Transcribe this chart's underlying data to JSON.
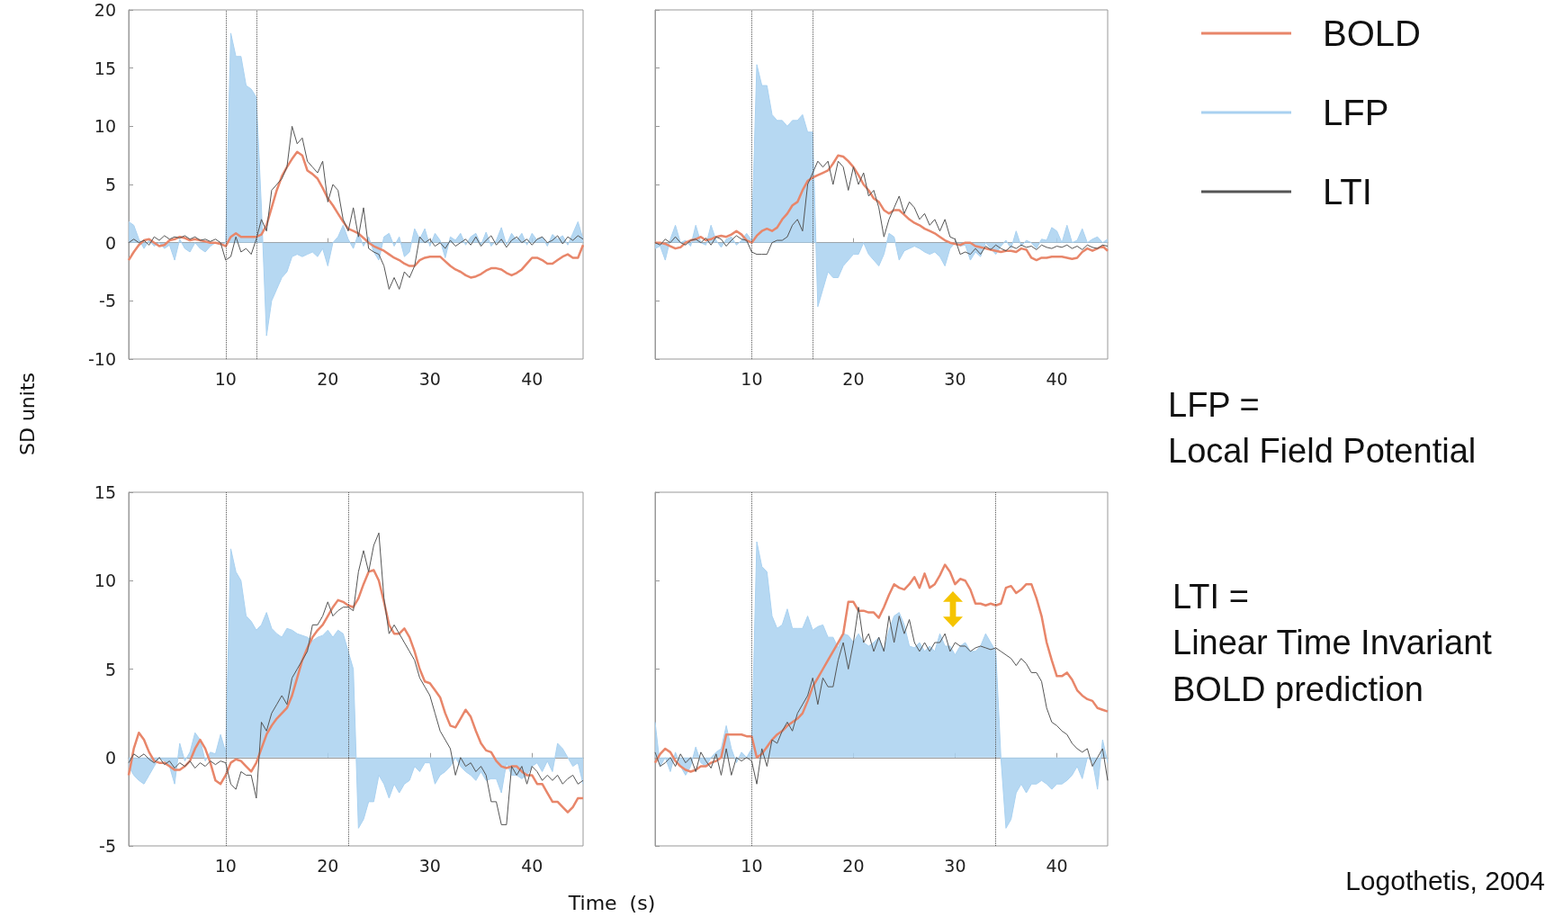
{
  "chart_data": [
    {
      "type": "line",
      "ylabel": "SD units",
      "xlim": [
        0.5,
        45
      ],
      "xticks": [
        10,
        20,
        30,
        40
      ],
      "ylim": [
        -10,
        20
      ],
      "yticks": [
        -10,
        -5,
        0,
        5,
        10,
        15,
        20
      ],
      "marker": "none",
      "legend": false,
      "grid": false,
      "x": [
        0.5,
        1,
        1.5,
        2,
        2.5,
        3,
        3.5,
        4,
        4.5,
        5,
        5.5,
        6,
        6.5,
        7,
        7.5,
        8,
        8.5,
        9,
        9.5,
        10,
        10.5,
        11,
        11.5,
        12,
        12.5,
        13,
        13.5,
        14,
        14.5,
        15,
        15.5,
        16,
        16.5,
        17,
        17.5,
        18,
        18.5,
        19,
        19.5,
        20,
        20.5,
        21,
        21.5,
        22,
        22.5,
        23,
        23.5,
        24,
        24.5,
        25,
        25.5,
        26,
        26.5,
        27,
        27.5,
        28,
        28.5,
        29,
        29.5,
        30,
        30.5,
        31,
        31.5,
        32,
        32.5,
        33,
        33.5,
        34,
        34.5,
        35,
        35.5,
        36,
        36.5,
        37,
        37.5,
        38,
        38.5,
        39,
        39.5,
        40,
        40.5,
        41,
        41.5,
        42,
        42.5,
        43,
        43.5,
        44,
        44.5,
        45
      ],
      "ref_lines": [
        {
          "axis": "x",
          "value": 10,
          "color": "#555555",
          "line_style": "dotted"
        },
        {
          "axis": "x",
          "value": 13,
          "color": "#555555",
          "line_style": "dotted"
        }
      ],
      "series": [
        {
          "type": "line",
          "color": "#e8866a",
          "values": [
            -1.5,
            -0.8,
            -0.2,
            0.2,
            0.3,
            0,
            -0.3,
            -0.2,
            0.2,
            0.3,
            0.5,
            0.4,
            0.2,
            0.3,
            0.2,
            0.1,
            0,
            0,
            -0.1,
            -0.3,
            0.5,
            0.8,
            0.5,
            0.5,
            0.5,
            0.5,
            0.7,
            1.5,
            3,
            4.5,
            5.7,
            6.5,
            7.2,
            7.8,
            7.5,
            6.2,
            5.9,
            5.5,
            4.7,
            3.8,
            3.2,
            2.5,
            1.8,
            1.2,
            1,
            0.8,
            0.4,
            0,
            -0.3,
            -0.5,
            -0.7,
            -1,
            -1.3,
            -1.5,
            -1.8,
            -2,
            -2,
            -1.5,
            -1.3,
            -1.2,
            -1.2,
            -1.2,
            -1.6,
            -2,
            -2.3,
            -2.5,
            -2.8,
            -3,
            -2.9,
            -2.7,
            -2.4,
            -2.2,
            -2.2,
            -2.3,
            -2.6,
            -2.8,
            -2.6,
            -2.3,
            -1.8,
            -1.3,
            -1.3,
            -1.5,
            -1.8,
            -1.8,
            -1.5,
            -1.2,
            -1,
            -1.3,
            -1.3,
            -0.2
          ]
        },
        {
          "type": "area",
          "color": "#a9d1f0",
          "values": [
            1.8,
            1.5,
            0.3,
            -0.5,
            0.2,
            -0.3,
            0,
            -0.5,
            -0.2,
            -1.5,
            0.3,
            -0.5,
            -0.8,
            0,
            -0.5,
            -0.8,
            -0.3,
            0,
            -0.2,
            0,
            18,
            16,
            16,
            13.5,
            13.2,
            12.5,
            3,
            -8,
            -5,
            -4,
            -3,
            -2.5,
            -1.2,
            -1,
            -1.2,
            -1,
            -0.8,
            -1.2,
            -0.5,
            -2,
            0,
            0.5,
            1.5,
            0.3,
            -0.5,
            0.8,
            -0.3,
            0.5,
            -0.8,
            -1.5,
            0.5,
            0.8,
            -0.3,
            0.5,
            -1.2,
            -0.8,
            1.2,
            0.3,
            1.2,
            -0.3,
            0.8,
            0.2,
            -1.3,
            0.5,
            0.2,
            0.8,
            -0.2,
            0.5,
            0.8,
            -0.2,
            0.9,
            -0.3,
            0.2,
            1.3,
            -0.2,
            0.8,
            0.2,
            0.8,
            -0.2,
            0.8,
            0.2,
            0.5,
            -0.3,
            0.7,
            0.3,
            0.6,
            -0.2,
            0.8,
            1.8,
            0.3
          ]
        },
        {
          "type": "line",
          "color": "#555555",
          "values": [
            0,
            0.3,
            0,
            0.2,
            -0.2,
            0.5,
            0.2,
            0.6,
            0.3,
            0.5,
            0.4,
            0.6,
            0.3,
            0.5,
            0.2,
            0.3,
            0.1,
            0.3,
            0,
            -1.5,
            -1.2,
            0.5,
            -0.8,
            -0.5,
            -1,
            0.3,
            2,
            1,
            4.5,
            5,
            5.5,
            6.5,
            10,
            8.5,
            9,
            7,
            6.5,
            6,
            7,
            3.5,
            5,
            4.5,
            2,
            1,
            3,
            0.5,
            3,
            -0.5,
            -0.8,
            -1,
            -2,
            -4,
            -3,
            -4,
            -2.5,
            -3,
            -2,
            0.5,
            0,
            0.3,
            -0.3,
            0,
            -0.5,
            0.2,
            -0.3,
            0,
            0.3,
            -0.2,
            0.5,
            -0.3,
            0.2,
            0.6,
            -0.2,
            0.3,
            -0.4,
            0.2,
            0.5,
            0,
            0.3,
            -0.2,
            0.3,
            0.5,
            0,
            0.2,
            0.6,
            -0.1,
            0.5,
            0.2,
            0.6,
            0.3
          ]
        }
      ]
    },
    {
      "type": "line",
      "xlim": [
        0.5,
        45
      ],
      "xticks": [
        10,
        20,
        30,
        40
      ],
      "ylim": [
        -10,
        20
      ],
      "yticks": [
        -10,
        -5,
        0,
        5,
        10,
        15,
        20
      ],
      "tick_labels": "x",
      "marker": "none",
      "legend": "right",
      "grid": false,
      "x": [
        0.5,
        1,
        1.5,
        2,
        2.5,
        3,
        3.5,
        4,
        4.5,
        5,
        5.5,
        6,
        6.5,
        7,
        7.5,
        8,
        8.5,
        9,
        9.5,
        10,
        10.5,
        11,
        11.5,
        12,
        12.5,
        13,
        13.5,
        14,
        14.5,
        15,
        15.5,
        16,
        16.5,
        17,
        17.5,
        18,
        18.5,
        19,
        19.5,
        20,
        20.5,
        21,
        21.5,
        22,
        22.5,
        23,
        23.5,
        24,
        24.5,
        25,
        25.5,
        26,
        26.5,
        27,
        27.5,
        28,
        28.5,
        29,
        29.5,
        30,
        30.5,
        31,
        31.5,
        32,
        32.5,
        33,
        33.5,
        34,
        34.5,
        35,
        35.5,
        36,
        36.5,
        37,
        37.5,
        38,
        38.5,
        39,
        39.5,
        40,
        40.5,
        41,
        41.5,
        42,
        42.5,
        43,
        43.5,
        44,
        44.5,
        45
      ],
      "ref_lines": [
        {
          "axis": "x",
          "value": 10,
          "color": "#555555",
          "line_style": "dotted"
        },
        {
          "axis": "x",
          "value": 16,
          "color": "#555555",
          "line_style": "dotted"
        }
      ],
      "series": [
        {
          "name": "BOLD",
          "type": "line",
          "color": "#e8866a",
          "values": [
            0,
            0,
            -0.1,
            -0.3,
            -0.5,
            -0.4,
            0,
            0.2,
            0.3,
            0.5,
            0.2,
            0.3,
            0.5,
            0.6,
            0.5,
            0.7,
            1,
            0.7,
            0.2,
            0,
            0.6,
            1,
            1.2,
            1,
            1.3,
            2,
            2.5,
            3.2,
            3.5,
            4.5,
            5.3,
            5.6,
            5.8,
            6,
            6.2,
            6.8,
            7.5,
            7.4,
            7,
            6.5,
            5.8,
            5,
            4.5,
            3.8,
            3.5,
            2.8,
            2.5,
            2.8,
            2.8,
            2.4,
            2,
            1.7,
            1.5,
            1.2,
            1,
            0.8,
            0.5,
            0.2,
            0,
            -0.1,
            -0.2,
            0,
            0,
            -0.3,
            -0.4,
            -0.5,
            -0.6,
            -0.7,
            -0.8,
            -0.7,
            -0.7,
            -0.8,
            -0.5,
            -0.6,
            -1.3,
            -1.5,
            -1.3,
            -1.3,
            -1.2,
            -1.2,
            -1.2,
            -1.3,
            -1.4,
            -1.3,
            -0.8,
            -0.5,
            -0.7,
            -0.5,
            -0.3,
            -0.7
          ]
        },
        {
          "name": "LFP",
          "type": "area",
          "color": "#a9d1f0",
          "values": [
            -0.5,
            -0.3,
            -1.5,
            0.3,
            1.5,
            0,
            0.2,
            -0.3,
            1.5,
            0,
            -0.2,
            1.5,
            0.2,
            -0.4,
            0.3,
            0.5,
            -0.2,
            0.2,
            0.8,
            0.2,
            15.3,
            13.5,
            13.5,
            11,
            10.5,
            10.5,
            10,
            10.5,
            10.5,
            11,
            9.5,
            9.5,
            -5.5,
            -4,
            -2.5,
            -3,
            -3,
            -2,
            -1.5,
            -1,
            -1,
            0,
            -1,
            -1.5,
            -2,
            -1,
            0.8,
            0.5,
            -1.5,
            -0.7,
            -0.5,
            -0.3,
            -0.5,
            -0.8,
            -1,
            -0.8,
            -1.2,
            -2,
            -0.5,
            0,
            -0.3,
            -0.2,
            -1.5,
            -0.8,
            -1.2,
            0,
            -0.5,
            -1,
            -0.3,
            0.2,
            -0.5,
            1,
            -0.3,
            0.2,
            0,
            -0.5,
            0.3,
            0.2,
            1.3,
            1,
            0,
            1.5,
            0,
            0.2,
            1.2,
            0,
            0.3,
            0.5,
            0,
            0.3
          ]
        },
        {
          "name": "LTI",
          "type": "line",
          "color": "#555555",
          "values": [
            0,
            -0.2,
            0.3,
            0,
            0.5,
            0,
            -0.2,
            0.2,
            0.3,
            0,
            0.4,
            -0.2,
            0.5,
            0.3,
            -0.3,
            0.2,
            0.6,
            0.3,
            0.2,
            -0.8,
            -1,
            -1,
            -1,
            0,
            0.2,
            0.2,
            0.5,
            1.5,
            2,
            1,
            5,
            6,
            7,
            6.5,
            7,
            5,
            7,
            6.5,
            4.5,
            6.5,
            5,
            6,
            4,
            4.5,
            3,
            0.5,
            2,
            3,
            4,
            2.5,
            3.5,
            3,
            2,
            2.5,
            1.5,
            2,
            1,
            2,
            0.5,
            0.3,
            -1,
            -0.8,
            -1,
            -0.5,
            -1,
            -0.3,
            -0.6,
            -0.2,
            -0.5,
            -0.7,
            -0.3,
            -0.5,
            -0.2,
            -0.4,
            -0.3,
            -0.6,
            -0.2,
            -0.4,
            -0.5,
            -0.3,
            -0.4,
            -0.2,
            -0.5,
            -0.3,
            -0.6,
            -0.2,
            -0.4,
            -0.5,
            -0.2,
            -0.3
          ]
        }
      ]
    },
    {
      "type": "line",
      "xlabel": "Time  (s)",
      "xlim": [
        0.5,
        45
      ],
      "xticks": [
        10,
        20,
        30,
        40
      ],
      "ylim": [
        -5,
        15
      ],
      "yticks": [
        -5,
        0,
        5,
        10,
        15
      ],
      "marker": "none",
      "legend": false,
      "grid": false,
      "x": [
        0.5,
        1,
        1.5,
        2,
        2.5,
        3,
        3.5,
        4,
        4.5,
        5,
        5.5,
        6,
        6.5,
        7,
        7.5,
        8,
        8.5,
        9,
        9.5,
        10,
        10.5,
        11,
        11.5,
        12,
        12.5,
        13,
        13.5,
        14,
        14.5,
        15,
        15.5,
        16,
        16.5,
        17,
        17.5,
        18,
        18.5,
        19,
        19.5,
        20,
        20.5,
        21,
        21.5,
        22,
        22.5,
        23,
        23.5,
        24,
        24.5,
        25,
        25.5,
        26,
        26.5,
        27,
        27.5,
        28,
        28.5,
        29,
        29.5,
        30,
        30.5,
        31,
        31.5,
        32,
        32.5,
        33,
        33.5,
        34,
        34.5,
        35,
        35.5,
        36,
        36.5,
        37,
        37.5,
        38,
        38.5,
        39,
        39.5,
        40,
        40.5,
        41,
        41.5,
        42,
        42.5,
        43,
        43.5,
        44,
        44.5,
        45
      ],
      "ref_lines": [
        {
          "axis": "x",
          "value": 10,
          "color": "#555555",
          "line_style": "dotted"
        },
        {
          "axis": "x",
          "value": 22,
          "color": "#555555",
          "line_style": "dotted"
        }
      ],
      "series": [
        {
          "type": "line",
          "color": "#e8866a",
          "values": [
            -1,
            0.5,
            1.4,
            1,
            0.3,
            -0.2,
            -0.3,
            -0.3,
            -0.5,
            -0.7,
            -0.7,
            -0.5,
            -0.2,
            0.5,
            1,
            0.5,
            -0.3,
            -1.3,
            -1.5,
            -1,
            -0.3,
            -0.1,
            -0.2,
            -0.5,
            -0.8,
            -0.3,
            0.5,
            1.3,
            1.8,
            2.2,
            2.5,
            2.8,
            3.5,
            4.5,
            5.5,
            6.2,
            6.8,
            7.2,
            7.5,
            8,
            8.5,
            8.9,
            8.8,
            8.6,
            8.5,
            9,
            9.8,
            10.5,
            10.6,
            10,
            8.8,
            7.5,
            7,
            7,
            7.3,
            6.8,
            6,
            5,
            4.3,
            4.2,
            3.8,
            3.4,
            2.5,
            1.8,
            1.7,
            2.2,
            2.7,
            2.3,
            1.5,
            0.8,
            0.4,
            0.3,
            -0.2,
            -0.5,
            -0.6,
            -0.5,
            -0.5,
            -0.8,
            -1,
            -1,
            -1.5,
            -1.5,
            -2,
            -2.5,
            -2.5,
            -2.8,
            -3.1,
            -2.8,
            -2.3,
            -2.3
          ]
        },
        {
          "type": "area",
          "color": "#a9d1f0",
          "values": [
            -0.5,
            -1,
            -1.3,
            -1.5,
            -1,
            -0.5,
            0,
            -0.2,
            -0.5,
            -1.5,
            0.8,
            -0.2,
            0.3,
            1.4,
            1,
            -0.2,
            0.3,
            0.2,
            1.3,
            0.3,
            11.8,
            10.5,
            10,
            8,
            7.7,
            7.2,
            7.5,
            8.2,
            7.3,
            7,
            6.8,
            7.3,
            7.2,
            7,
            6.9,
            6.8,
            6.6,
            6.8,
            6.9,
            7.2,
            6.8,
            7.2,
            7,
            6,
            5,
            -4,
            -3.5,
            -2.5,
            -2.5,
            -1,
            -1.5,
            -2.3,
            -1.5,
            -2,
            -1.5,
            -1.3,
            -0.5,
            -0.8,
            -0.3,
            -0.3,
            -1.5,
            -1,
            -0.8,
            -0.5,
            0,
            -0.5,
            -0.8,
            -1,
            -1.3,
            -0.8,
            -1.3,
            -1.2,
            -1.2,
            -2,
            -0.3,
            -1,
            -1,
            -1.2,
            -1,
            -0.5,
            -0.3,
            -0.8,
            -0.2,
            -0.8,
            0.8,
            0.5,
            0,
            -0.5,
            -0.3,
            -1.5
          ]
        },
        {
          "type": "line",
          "color": "#555555",
          "values": [
            -0.3,
            0.2,
            0,
            0.2,
            -0.1,
            -0.3,
            0,
            -0.4,
            -0.2,
            -0.6,
            -0.3,
            -0.5,
            -0.2,
            -0.6,
            -0.3,
            -0.5,
            -0.2,
            -0.4,
            -0.2,
            -0.3,
            -1.5,
            -1.8,
            -0.8,
            -1,
            -1,
            -2.3,
            2,
            1.5,
            2.5,
            3,
            3.5,
            3,
            4.5,
            5,
            5.5,
            6,
            7.5,
            7.5,
            8,
            8.8,
            8,
            8.3,
            8.5,
            8.5,
            8.3,
            10.5,
            11.7,
            10.5,
            12,
            12.7,
            9,
            7,
            7.5,
            7,
            6.5,
            6,
            5.5,
            4.5,
            4,
            3.5,
            2.5,
            1.5,
            1,
            0.5,
            -1,
            0,
            -0.5,
            -0.3,
            -0.8,
            -0.5,
            -1,
            -2.5,
            -2.5,
            -3.8,
            -3.8,
            -0.5,
            -1,
            -0.5,
            -1.5,
            -0.5,
            -0.8,
            -1.3,
            -1,
            -1.3,
            -1,
            -1.5,
            -1.2,
            -1,
            -1.5,
            -1.3
          ]
        }
      ]
    },
    {
      "type": "line",
      "xlim": [
        0.5,
        45
      ],
      "xticks": [
        10,
        20,
        30,
        40
      ],
      "ylim": [
        -5,
        15
      ],
      "yticks": [
        -5,
        0,
        5,
        10,
        15
      ],
      "tick_labels": "x",
      "marker": "none",
      "legend": false,
      "grid": false,
      "annotations": [
        "LFP =\nLocal Field Potential",
        "LTI =\nLinear Time Invariant\nBOLD prediction",
        "Logothetis, 2004"
      ],
      "x": [
        0.5,
        1,
        1.5,
        2,
        2.5,
        3,
        3.5,
        4,
        4.5,
        5,
        5.5,
        6,
        6.5,
        7,
        7.5,
        8,
        8.5,
        9,
        9.5,
        10,
        10.5,
        11,
        11.5,
        12,
        12.5,
        13,
        13.5,
        14,
        14.5,
        15,
        15.5,
        16,
        16.5,
        17,
        17.5,
        18,
        18.5,
        19,
        19.5,
        20,
        20.5,
        21,
        21.5,
        22,
        22.5,
        23,
        23.5,
        24,
        24.5,
        25,
        25.5,
        26,
        26.5,
        27,
        27.5,
        28,
        28.5,
        29,
        29.5,
        30,
        30.5,
        31,
        31.5,
        32,
        32.5,
        33,
        33.5,
        34,
        34.5,
        35,
        35.5,
        36,
        36.5,
        37,
        37.5,
        38,
        38.5,
        39,
        39.5,
        40,
        40.5,
        41,
        41.5,
        42,
        42.5,
        43,
        43.5,
        44,
        44.5,
        45
      ],
      "ref_lines": [
        {
          "axis": "x",
          "value": 10,
          "color": "#555555",
          "line_style": "dotted"
        },
        {
          "axis": "x",
          "value": 34,
          "color": "#555555",
          "line_style": "dotted"
        }
      ],
      "series": [
        {
          "type": "line",
          "color": "#e8866a",
          "values": [
            -0.3,
            0.2,
            0.5,
            0.3,
            -0.2,
            -0.5,
            -0.7,
            -0.8,
            -0.7,
            -0.5,
            -0.5,
            -0.3,
            -0.2,
            0,
            1.3,
            1.3,
            1.3,
            1.3,
            1.2,
            1.2,
            0,
            0.2,
            0.6,
            1,
            1.3,
            1.5,
            1.8,
            2,
            2.2,
            2.5,
            3.2,
            4,
            4.5,
            5,
            5.5,
            6,
            6.5,
            7,
            8.8,
            8.8,
            8.3,
            8.3,
            8.2,
            8.2,
            7.9,
            8.5,
            9.2,
            9.8,
            9.6,
            9.5,
            9.8,
            10.2,
            9.6,
            10.4,
            9.6,
            9.8,
            10.3,
            10.9,
            10.5,
            9.8,
            10.1,
            10,
            9.5,
            8.7,
            8.7,
            8.6,
            8.7,
            8.6,
            8.7,
            9.6,
            9.7,
            9.3,
            9.5,
            9.8,
            9.8,
            9,
            8,
            6.5,
            5.5,
            4.6,
            4.6,
            4.8,
            4.4,
            3.8,
            3.5,
            3.3,
            3.2,
            2.8,
            2.7,
            2.6
          ]
        },
        {
          "type": "area",
          "color": "#a9d1f0",
          "values": [
            2,
            -0.5,
            0,
            -0.8,
            0.3,
            -0.5,
            -1,
            -0.5,
            0.6,
            -0.3,
            -0.5,
            0,
            0.3,
            0.5,
            1.8,
            0.5,
            -0.3,
            0.3,
            0,
            0.5,
            12.2,
            10.8,
            10.5,
            8,
            7.3,
            7.5,
            8.4,
            7.3,
            7.3,
            7.3,
            8,
            7.2,
            7.4,
            7.5,
            6.8,
            6.8,
            6.2,
            7,
            6.9,
            6.5,
            7,
            6.5,
            6.3,
            6.5,
            6.8,
            6,
            7.2,
            8,
            8.2,
            7.5,
            6.3,
            6.2,
            6.5,
            6,
            6.3,
            6,
            7,
            6.3,
            6.3,
            5.8,
            6.3,
            6.5,
            6,
            6,
            6.3,
            7,
            6.5,
            6,
            0,
            -4,
            -3.5,
            -2,
            -1.5,
            -2,
            -1.5,
            -1.5,
            -1.3,
            -1.5,
            -1.8,
            -1.5,
            -1.5,
            -1.3,
            -1,
            -0.5,
            -1.2,
            0,
            -0.2,
            -1.8,
            1,
            -0.3
          ]
        },
        {
          "type": "line",
          "color": "#555555",
          "values": [
            0.3,
            -0.5,
            -0.3,
            0,
            -0.5,
            0.2,
            -0.3,
            0,
            -0.8,
            0.3,
            -0.2,
            -0.6,
            0.2,
            -1,
            0.5,
            -1,
            0,
            -0.2,
            0,
            -0.2,
            -1.5,
            0.5,
            -0.5,
            1,
            0.8,
            1.5,
            2,
            1.5,
            2.5,
            3,
            3.5,
            4.5,
            3,
            4.5,
            4,
            4,
            5.5,
            6.5,
            5,
            6.5,
            8.5,
            6.5,
            7,
            6,
            6.8,
            6,
            8,
            6.5,
            8,
            7,
            7.8,
            6.5,
            6,
            6.5,
            6,
            6.5,
            6.5,
            7,
            6,
            6.5,
            6.3,
            6.3,
            6,
            6.2,
            6.3,
            6.2,
            6.1,
            6.2,
            6,
            5.8,
            5.6,
            5.2,
            5.6,
            5.3,
            4.8,
            4.8,
            4.3,
            2.8,
            2,
            1.8,
            1.5,
            1.3,
            0.8,
            0.5,
            0.3,
            0.5,
            -0.5,
            0,
            0.5,
            -1.3
          ]
        }
      ]
    }
  ]
}
